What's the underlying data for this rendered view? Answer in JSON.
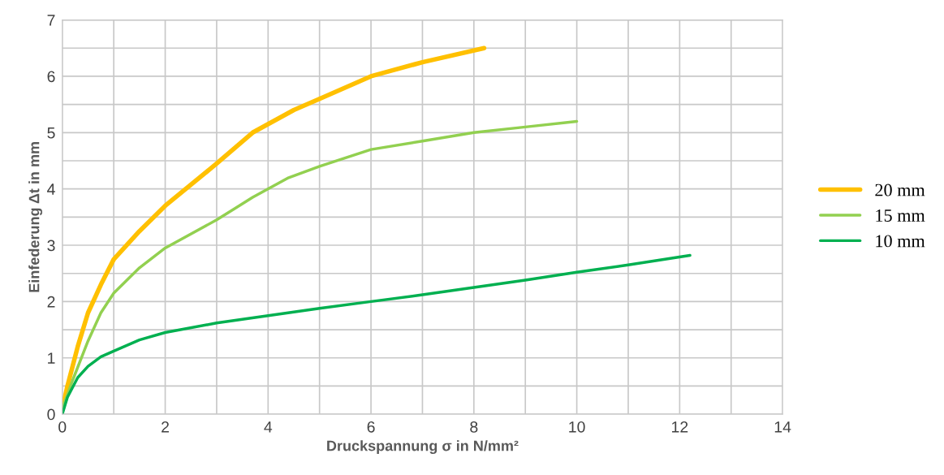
{
  "chart_data": {
    "type": "line",
    "xlabel": "Druckspannung σ in N/mm²",
    "ylabel": "Einfederung Δt in mm",
    "xlim": [
      0,
      14
    ],
    "xticks": [
      0,
      2,
      4,
      6,
      8,
      10,
      12,
      14
    ],
    "ylim": [
      0,
      7
    ],
    "yticks": [
      0,
      1,
      2,
      3,
      4,
      5,
      6,
      7
    ],
    "grid": true,
    "legend": "right",
    "marker": "none",
    "line_style": "solid",
    "series": [
      {
        "name": "20 mm",
        "color": "#ffc000",
        "x": [
          0,
          0.1,
          0.3,
          0.5,
          0.75,
          1,
          1.5,
          2,
          3,
          3.7,
          4.5,
          5,
          6,
          7,
          8.2
        ],
        "values": [
          0.1,
          0.5,
          1.2,
          1.8,
          2.3,
          2.75,
          3.25,
          3.7,
          4.45,
          5.0,
          5.4,
          5.6,
          6.0,
          6.25,
          6.5
        ]
      },
      {
        "name": "15 mm",
        "color": "#92d050",
        "x": [
          0,
          0.2,
          0.5,
          0.75,
          1,
          1.5,
          2,
          3,
          3.7,
          4.4,
          5,
          6,
          7,
          8,
          9,
          10
        ],
        "values": [
          0.1,
          0.6,
          1.3,
          1.8,
          2.15,
          2.6,
          2.95,
          3.45,
          3.85,
          4.2,
          4.4,
          4.7,
          4.85,
          5.0,
          5.1,
          5.2
        ]
      },
      {
        "name": "10 mm",
        "color": "#00b050",
        "x": [
          0,
          0.1,
          0.3,
          0.5,
          0.75,
          1,
          1.5,
          2,
          3,
          4,
          5,
          6,
          7,
          8,
          9,
          10,
          11,
          12.2
        ],
        "values": [
          0,
          0.3,
          0.65,
          0.85,
          1.02,
          1.12,
          1.32,
          1.45,
          1.62,
          1.75,
          1.88,
          2.0,
          2.12,
          2.25,
          2.38,
          2.52,
          2.65,
          2.82
        ]
      }
    ]
  }
}
